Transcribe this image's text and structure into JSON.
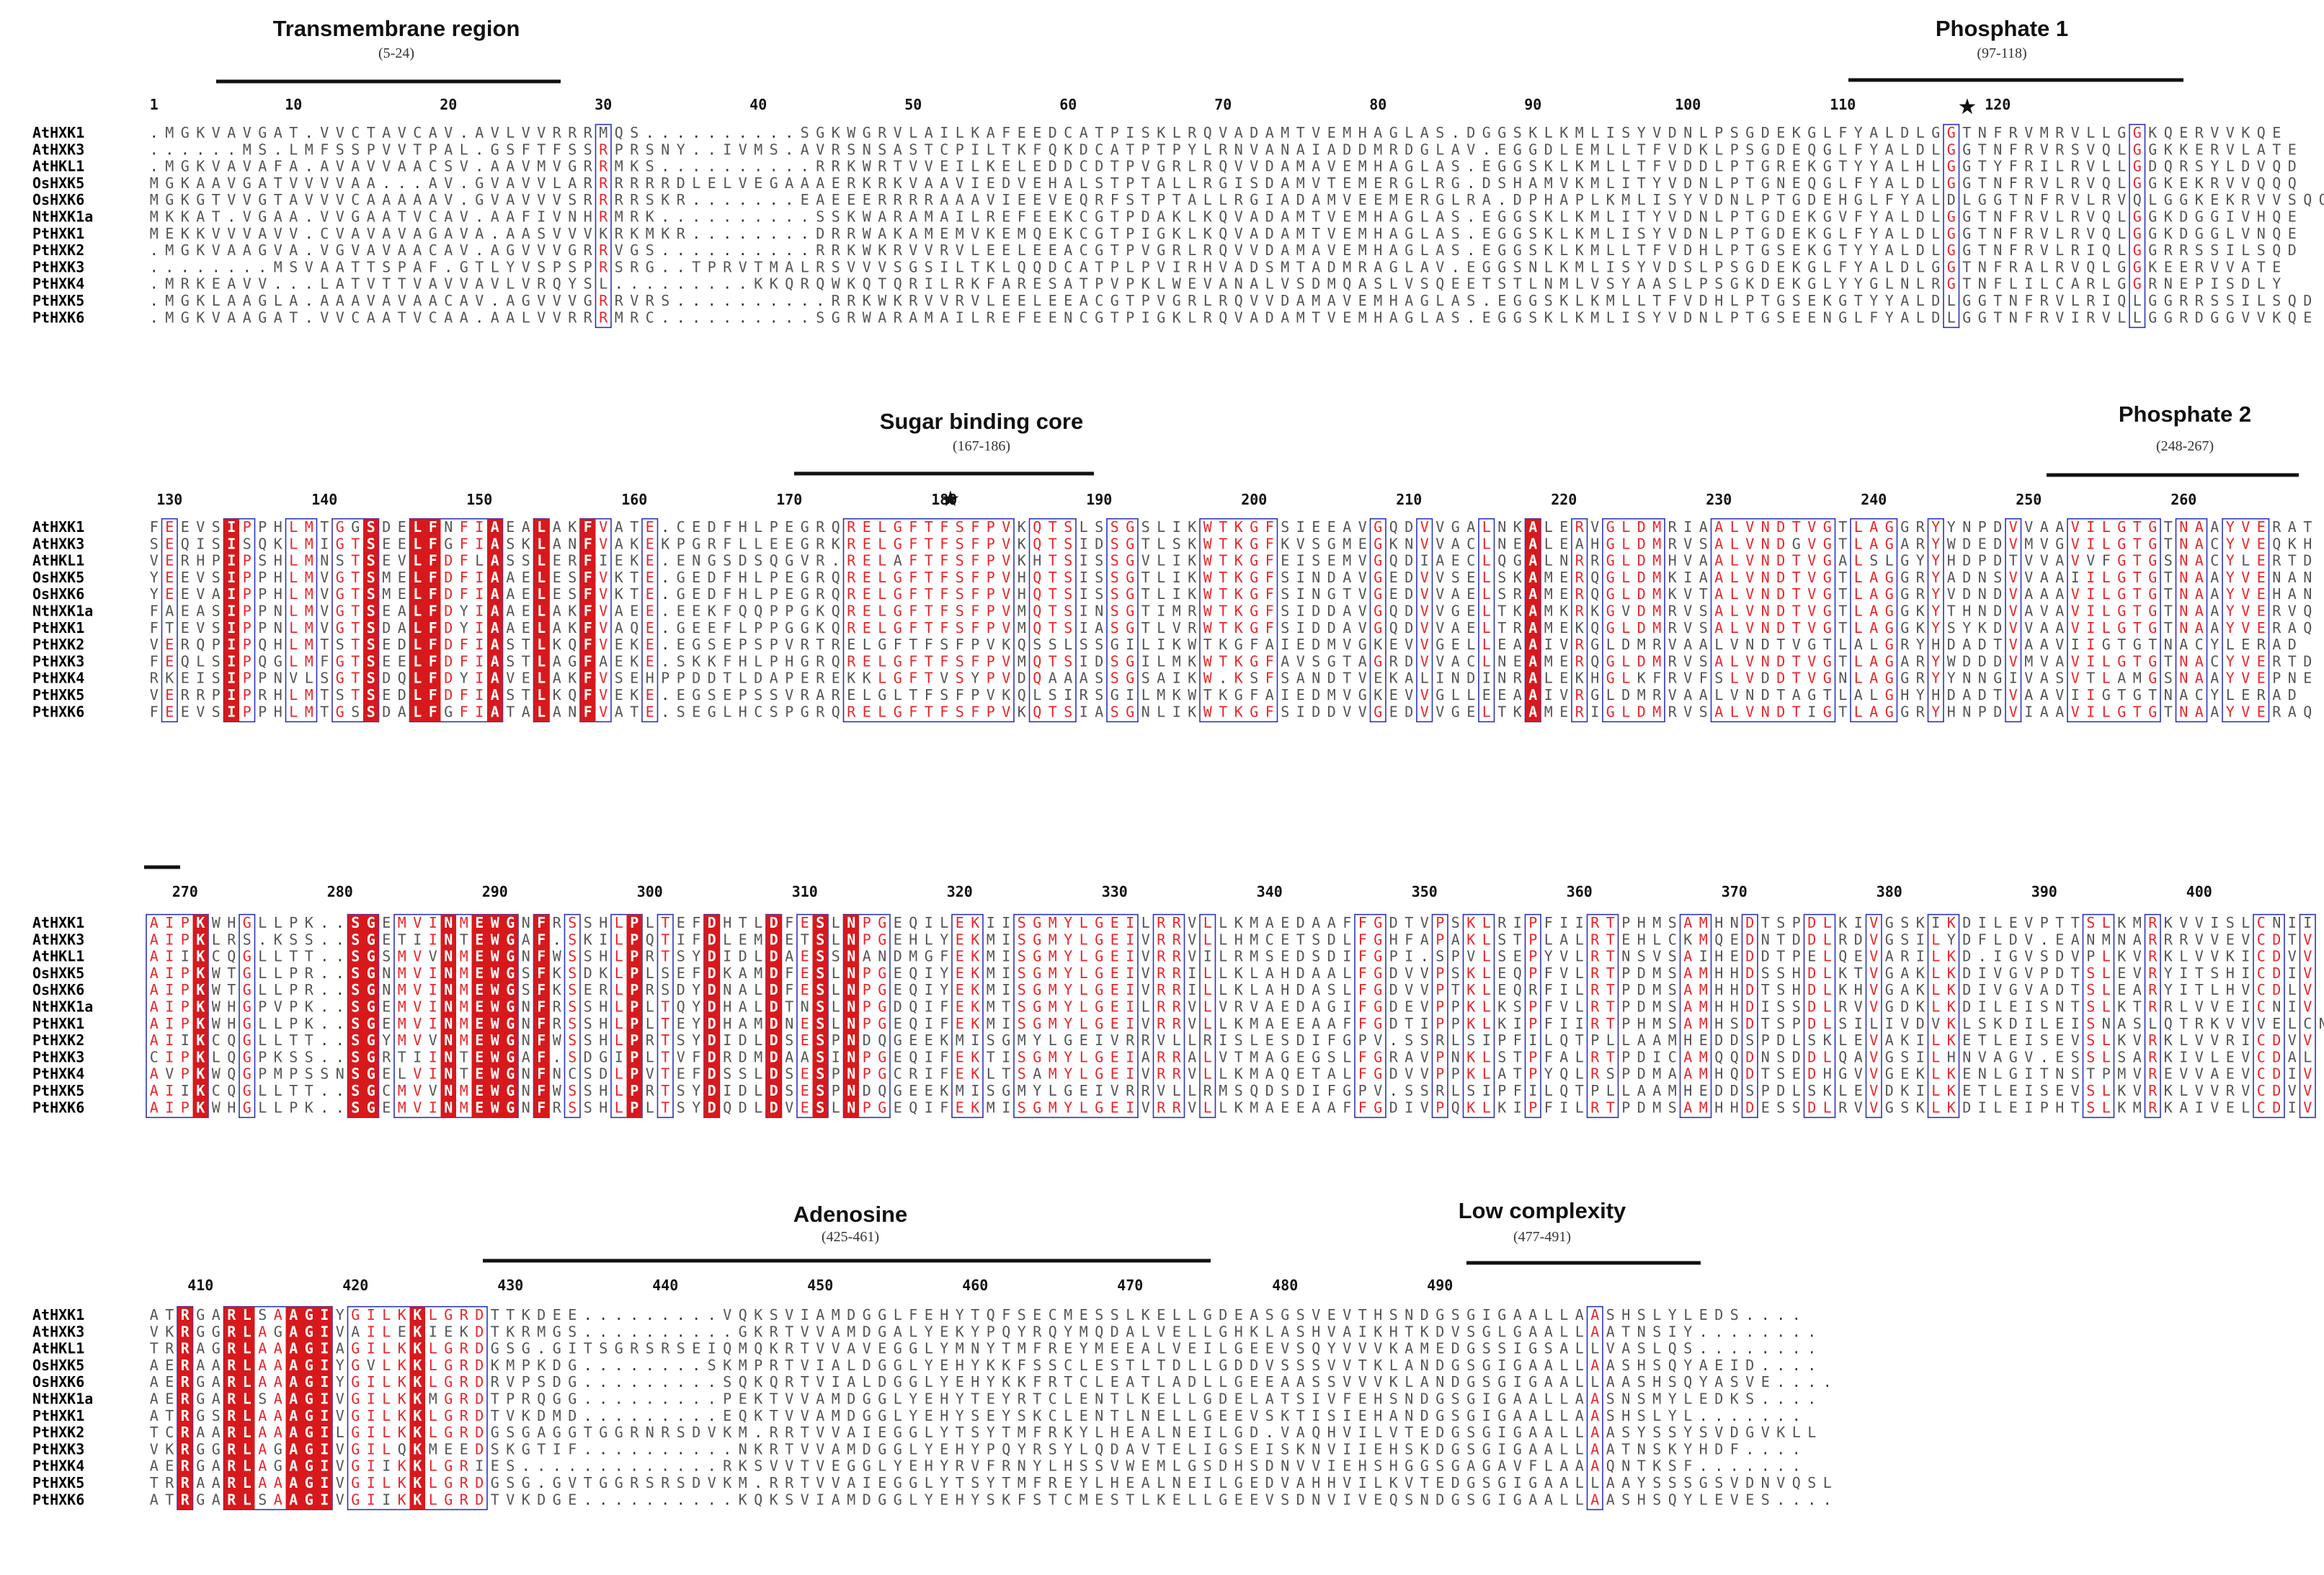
{
  "figure": {
    "block1": {
      "annotations": [
        {
          "label": "Transmembrane region",
          "range": "(5-24)"
        },
        {
          "label": "Phosphate 1",
          "range": "(97-118)"
        }
      ],
      "positions": [
        "1",
        "10",
        "20",
        "30",
        "40",
        "50",
        "60",
        "70",
        "80",
        "90",
        "100",
        "110",
        "120"
      ],
      "star": "★",
      "sequences": [
        {
          "name": "AtHXK1",
          "seq": ".MGKVAVGAT.VVCTAVCAV.AVLVVRRRMQS..........SGKWGRVLAILKAFEEDCATPISKLRQVADAMTVEMHAGLAS.DGGSKLKMLISYVDNLPSGDEKGLFYALDLGGTNFRVMRVLLGGKQERVVKQE"
        },
        {
          "name": "AtHXK3",
          "seq": "......MS.LMFSSPVVTPAL.GSFTFSSRPRSNY..IVMS.AVRSNSASTCPILTKFQKDCATPTPYLRNVANAIADDMRDGLAV.EGGDLEMLLTFVDKLPSGDEQGLFYALDLGGTNFRVRSVQLGGKKERVLATE"
        },
        {
          "name": "AtHKL1",
          "seq": ".MGKVAVAFA.AVAVVAACSV.AAVMVGRRMKS..........RRKWRTVVEILKELEDDCDTPVGRLRQVVDAMAVEMHAGLAS.EGGSKLKMLLTFVDDLPTGREKGTYYALHLGGTYFRILRVLLGDQRSYLDVQD"
        },
        {
          "name": "OsHXK5",
          "seq": "MGKAAVGATVVVVAA...AV.GVAVVLARRRRRRDLELVEGAAAERKRKVAAVIEDVEHALSTPTALLRGISDAMVTEMERGLRG.DSHAMVKMLITYVDNLPTGNEQGLFYALDLGGTNFRVLRVQLGGKEKRVVQQQ"
        },
        {
          "name": "OsHXK6",
          "seq": "MGKGTVVGTAVVVCAAAAAV.GVAVVVSRRRRSKR.......EAEEERRRRAAAVIEEVEQRFSTPTALLRGIADAMVEEMERGLRA.DPHAPLKMLISYVDNLPTGDEHGLFYALDLGGTNFRVLRVQLGGKEKRVVSQQ"
        },
        {
          "name": "NtHXK1a",
          "seq": "MKKAT.VGAA.VVGAATVCAV.AAFIVNHRMRK..........SSKWARAMAILREFEEKCGTPDAKLKQVADAMTVEMHAGLAS.EGGSKLKMLITYVDNLPTGDEKGVFYALDLGGTNFRVLRVQLGGKDGGIVHQE"
        },
        {
          "name": "PtHXK1",
          "seq": "MEKKVVVAVV.CVAVAVAGAVA.AASVVVKRKMKR........DRRWAKAMEMVKEMQEKCGTPIGKLKQVADAMTVEMHAGLAS.EGGSKLKMLISYVDNLPTGDEKGLFYALDLGGTNFRVLRVQLGGKDGGLVNQE"
        },
        {
          "name": "PtHXK2",
          "seq": ".MGKVAAGVA.VGVAVAACAV.AGVVVGRRVGS..........RRKWKRVVRVLEELEEACGTPVGRLRQVVDAMAVEMHAGLAS.EGGSKLKMLLTFVDHLPTGSEKGTYYALDLGGTNFRVLRIQLGGRRSSILSQD"
        },
        {
          "name": "PtHXK3",
          "seq": "........MSVAATTSPAF.GTLYVSPSPRSRG..TPRVTMALRSVVVSGSILTKLQQDCATPLPVIRHVADSMTADMRAGLAV.EGGSNLKMLISYVDSLPSGDEKGLFYALDLGGTNFRALRVQLGGKEERVVATE"
        },
        {
          "name": "PtHXK4",
          "seq": ".MRKEAVV...LATVTTVAVVAVLVRQYSL.........KKQRQWKQTQRILRKFARESATPVPKLWEVANALVSDMQASLVSQEETSTLNMLVSYAASLPSGKDEKGLYYGLNLRGTNFLILCARLGGRNEPISDLY"
        },
        {
          "name": "PtHXK5",
          "seq": ".MGKLAAGLA.AAAVAVAACAV.AGVVVGRRVRS..........RRKWKRVVRVLEELEEACGTPVGRLRQVVDAMAVEMHAGLAS.EGGSKLKMLLTFVDHLPTGSEKGTYYALDLGGTNFRVLRIQLGGRRSSILSQD"
        },
        {
          "name": "PtHXK6",
          "seq": ".MGKVAAGAT.VVCAATVCAA.AALVVRRRMRC..........SGRWARAMAILREFEENCGTPIGKLRQVADAMTVEMHAGLAS.EGGSKLKMLISYVDNLPTGSEENGLFYALDLGGTNFRVIRVLLGGRDGGVVKQE"
        }
      ]
    },
    "block2": {
      "annotations": [
        {
          "label": "Sugar binding core",
          "range": "(167-186)"
        },
        {
          "label": "Phosphate 2",
          "range": "(248-267)"
        }
      ],
      "positions": [
        "130",
        "140",
        "150",
        "160",
        "170",
        "180",
        "190",
        "200",
        "210",
        "220",
        "230",
        "240",
        "250",
        "260"
      ],
      "star": "★",
      "sequences": [
        {
          "name": "AtHXK1",
          "seq": "FEEVSIPPHLMTGGSDELFNFIAEALAKFVATE.CEDFHLPEGRQRELGFTFSFPVKQTSLSSGSLIKWTKGFSIEEAVGQDVVGALNKALERVGLDMRIAALVNDTVGTLAGGRYYNPDVVAAVILGTGTNAAYVERAT"
        },
        {
          "name": "AtHXK3",
          "seq": "SEQISISQKLMIGTSEELFGFIASKLANFVAKEKPGRFLLEEGRKRELGFTFSFPVKQTSIDSGTLSKWTKGFKVSGMEGKNVVACLNEALEAHGLDMRVSALVNDGVGTLAGARYWDEDVMVGVILGTGTNACYVEQKH"
        },
        {
          "name": "AtHKL1",
          "seq": "VERHPIPSHLMNSTSEVLFDFLASSLERFIEKE.ENGSDSQGVR.RELAFTFSFPVKHTSISSGVLIKWTKGFEISEMVGQDIAECLQGALNRRGLDMHVAALVNDTVGALSLGYYHDPDTVVAVVFGTGSNACYLERTD"
        },
        {
          "name": "OsHXK5",
          "seq": "YEEVSIPPHLMVGTSMELFDFIAAELESFVKTE.GEDFHLPEGRQRELGFTFSFPVHQTSISSGTLIKWTKGFSINDAVGEDVVSELSKAMERQGLDMKIAALVNDTVGTLAGGRYADNSVVAAIILGTGTNAAYVENAN"
        },
        {
          "name": "OsHXK6",
          "seq": "YEEVAIPPHLMVGTSMELFDFIAAELESFVKTE.GEDFHLPEGRQRELGFTFSFPVHQTSISSGTLIKWTKGFSINGTVGEDVVAELSRAMERQGLDMKVTALVNDTVGTLAGGRYVDNDVAAAVILGTGTNAAYVEHAN"
        },
        {
          "name": "NtHXK1a",
          "seq": "FAEASIPPNLMVGTSEALFDYIAAELAKFVAEE.EEKFQQPPGKQRELGFTFSFPVMQTSINSGTIMRWTKGFSIDDAVGQDVVGELTKAMKRKGVDMRVSALVNDTVGTLAGGKYTHNDVAVAVILGTGTNAAYVERVQ"
        },
        {
          "name": "PtHXK1",
          "seq": "FTEVSIPPNLMVGTSDALFDYIAAELAKFVAQE.GEEFLPPGGKQRELGFTFSFPVMQTSIASGTLVRWTKGFSIDDAVGQDVVAELTRAMEKQGLDMRVSALVNDTVGTLAGGKYSYKDVVAAVILGTGTNAAYVERAQ"
        },
        {
          "name": "PtHXK2",
          "seq": "VERQPIPQHLMTSTSEDLFDFIASTLKQFVEKE.EGSEPSPVRTRELGFTFSFPVKQSSLSSGILIKWTKGFAIEDMVGKEVVGELLEAAIVRGLDMRVAALVNDTVGTLALGRYHDADTVAAVIIGTGTNACYLERAD"
        },
        {
          "name": "PtHXK3",
          "seq": "FEQLSIPQGLMFGTSEELFDFIASTLAGFAEKE.SKKFHLPHGRQRELGFTFSFPVMQTSIDSGILMKWTKGFAVSGTAGRDVVACLNEAMERQGLDMRVSALVNDTVGTLAGARYWDDDVMVAVILGTGTNACYVERTD"
        },
        {
          "name": "PtHXK4",
          "seq": "RKEISIPPNVLSGTSDQLFDYIAVELAKFVSEHPPDDTLDAPEREKKLGFTVSYPVDQAAASSGSAIKW.KSFSANDTVEKALINDINRALEKHGLKFRVFSLVDDTVGNLAGGRYYNNGIVASVTLAMGSNAAYVEPNE"
        },
        {
          "name": "PtHXK5",
          "seq": "VERRPIPRHLMTSTSEDLFDFIASTLKQFVEKE.EGSEPSSVRARELGLTFSFPVKQLSIRSGILMKWTKGFAIEDMVGKEVVGLLEEAAIVRGLDMRVAALVNDTAGTLALGHYHDADTVAAVIIGTGTNACYLERAD"
        },
        {
          "name": "PtHXK6",
          "seq": "FEEVSIPPHLMTGSSDALFGFIATALANFVATE.SEGLHCSPGRQRELGFTFSFPVKQTSIASGNLIKWTKGFSIDDVVGEDVVGELTKAMERIGLDMRVSALVNDTIGTLAGGRYHNPDVIAAVILGTGTNAAYVERAQ"
        }
      ]
    },
    "block3": {
      "positions": [
        "270",
        "280",
        "290",
        "300",
        "310",
        "320",
        "330",
        "340",
        "350",
        "360",
        "370",
        "380",
        "390",
        "400"
      ],
      "sequences": [
        {
          "name": "AtHXK1",
          "seq": "AIPKWHGLLPK..SGEMVINMEWGNFRSSHLPLTEFDHTLDFESLNPGEQILEKIISGMYLGEILRRVLLKMAEDAAFFGDTVPSKLRIPFIIRTPHMSAMHNDTSPDLKIVGSKIKDILEVPTTSLKMRKVVISLCNII"
        },
        {
          "name": "AtHXK3",
          "seq": "AIPKLRS.KSS..SGETIINTEWGAF.SKILPQTIFDLEMDETSLNPGEHLYEKMISGMYLGEIVRRVLLHMCETSDLFGHFAPAKLSTPLALRTEHLCKMQEDNTDDLRDVGSILYDFLDV.EANMNARRRVVEVCDTV"
        },
        {
          "name": "AtHKL1",
          "seq": "AIIKCQGLLTT..SGSMVVNMEWGNFWSSHLPRTSYDIDLDAESSNANDMGFEKMISGMYLGEIVRRVILRMSEDSDIFGPI.SPVLSEPYVLRTNSVSAIHEDDTPELQEVARILKD.IGVSDVPLKVRKLVVKICDVV"
        },
        {
          "name": "OsHXK5",
          "seq": "AIPKWTGLLPR..SGNMVINMEWGSFKSDKLPLSEFDKAMDFESLNPGEQIYEKMISGMYLGEIVRRILLKLAHDAALFGDVVPSKLEQPFVLRTPDMSAMHHDSSHDLKTVGAKLKDIVGVPDTSLEVRYITSHICDIV"
        },
        {
          "name": "OsHXK6",
          "seq": "AIPKWTGLLPR..SGNMVINMEWGSFKSERLPRSDYDNALDFESLNPGEQIYEKMISGMYLGEIVRRILLKLAHDASLFGDVVPTKLEQRFILRTPDMSAMHHDTSHDLKHVGAKLKDIVGVADTSLEARYITLHVCDLV"
        },
        {
          "name": "NtHXK1a",
          "seq": "AIPKWHGPVPK..SGEMVINMEWGNFRSSHLPLTQYDHALDTNSLNPGDQIFEKMTSGMYLGEILRRVLVRVAEDAGIFGDEVPPKLKSPFVLRTPDMSAMHHDISSDLRVVGDKLKDILEISNTSLKTRRLVVEICNIV"
        },
        {
          "name": "PtHXK1",
          "seq": "AIPKWHGLLPK..SGEMVINMEWGNFRSSHLPLTEYDHAMDNESLNPGEQIFEKMISGMYLGEIVRRVLLKMAEEAAFFGDTIPPKLKIPFIIRTPHMSAMHSDTSPDLSILIVDVKLSKDILEISNASLQTRKVVVELCNIV"
        },
        {
          "name": "PtHXK2",
          "seq": "AIIKCQGLLTT..SGYMVVNMEWGNFWSSHLPRTSYDIDLDSESPNDQGEEKMISGMYLGEIVRRVLLRISLESDIFGPV.SSRLSIPFILQTPLLAAMHEDDSPDLSKLEVAKILKETLEISEVSLKVRKLVVRICDVV"
        },
        {
          "name": "PtHXK3",
          "seq": "CIPKLQGPKSS..SGRTIINTEWGAF.SDGIPLTVFDRDMDAASINPGEQIFEKTISGMYLGEIARRALVTMAGEGSLFGRAVPNKLSTPFALRTPDICAMQQDNSDDLQAVGSILHNVAGV.ESSLSARKIVLEVCDAL"
        },
        {
          "name": "PtHXK4",
          "seq": "AVPKWQGPMPSSNSGELVINTEWGNFNCSDLPVTEFDSSLDSESPNPGCRIFEKLTSAMYLGEIVRRVLLKMAQETALFGDVVPPKLATPYQLRSPDMAAMHQDTSEDHGVVGEKLKENLGITNSTPMVREVVAEVCDIV"
        },
        {
          "name": "PtHXK5",
          "seq": "AIIKCQGLLTT..SGCMVVNMEWGNFWSSHLPRTSYDIDLDSESPNDQGEEKMISGMYLGEIVRRVLLRMSQDSDIFGPV.SSRLSIPFILQTPLLAAMHEDDSPDLSKLEVDKILKETLEISEVSLKVRKLVVRVCDVV"
        },
        {
          "name": "PtHXK6",
          "seq": "AIPKWHGLLPK..SGEMVINMEWGNFRSSHLPLTSYDQDLDVESLNPGEQIFEKMISGMYLGEIVRRVLLKMAEEAAFFGDIVPQKLKIPFILRTPDMSAMHHDESSDLRVVGSKLKDILEIPHTSLKMRKAIVELCDIV"
        }
      ]
    },
    "block4": {
      "annotations": [
        {
          "label": "Adenosine",
          "range": "(425-461)"
        },
        {
          "label": "Low complexity",
          "range": "(477-491)"
        }
      ],
      "positions": [
        "410",
        "420",
        "430",
        "440",
        "450",
        "460",
        "470",
        "480",
        "490"
      ],
      "sequences": [
        {
          "name": "AtHXK1",
          "seq": "ATRGARLSAAGIYGILKKLGRDTTKDEE.........VQKSVIAMDGGLFEHYTQFSECMESSLKELLGDEASGSVEVTHSNDGSGIGAALLAASHSLYLEDS...."
        },
        {
          "name": "AtHXK3",
          "seq": "VKRGGRLAGAGIVAILEKIEKDTKRMGS..........GKRTVVAMDGALYEKYPQYRQYMQDALVELLGHKLASHVAIKHTKDVSGLGAALLAATNSIY........"
        },
        {
          "name": "AtHKL1",
          "seq": "TRRAGRLAAAGIAGILKKLGRDGSG.GITSGRSRSEIQMQKRTVVAVEGGLYMNYTMFREYMEEALVEILGEEVSQYVVVKAMEDGSSIGSALLVASLQS........"
        },
        {
          "name": "OsHXK5",
          "seq": "AERAARLAAAGIYGVLKKLGRDKMPKDG........SKMPRTVIALDGGLYEHYKKFSSCLESTLTDLLGDDVSSSVVTKLANDGSGIGAALLAASHSQYAEID...."
        },
        {
          "name": "OsHXK6",
          "seq": "AERGARLAAAGIYGILKKLGRDRVPSDG.........SQKQRTVIALDGGLYEHYKKFRTCLEATLADLLGEEAASSVVVKLANDGSGIGAALLAASHSQYASVE...."
        },
        {
          "name": "NtHXK1a",
          "seq": "AERGARLSAAGIVGILKKMGRDTPRQGG.........PEKTVVAMDGGLYEHYTEYRTCLENTLKELLGDELATSIVFEHSNDGSGIGAALLAASNSMYLEDKS...."
        },
        {
          "name": "PtHXK1",
          "seq": "ATRGSRLAAAGIVGILKKLGRDTVKDMD.........EQKTVVAMDGGLYEHYSEYSKCLENTLNELLGEEVSKTISIEHANDGSGIGAALLAASHSLYL......."
        },
        {
          "name": "PtHXK2",
          "seq": "TCRAARLAAAGILGILKKLGRDGSGAGGTGGRNRSDVKM.RRTVVAIEGGLYTSYTMFRKYLHEALNEILGD.VAQHVILVTEDGSGIGAALLAASYSSYSVDGVKLL"
        },
        {
          "name": "PtHXK3",
          "seq": "VKRGGRLAGAGIVGILQKMEEDSKGTIF..........NKRTVVAMDGGLYEHYPQYRSYLQDAVTELIGSEISKNVIIEHSKDGSGIGAALLAATNSKYHDF...."
        },
        {
          "name": "PtHXK4",
          "seq": "AERGARLAGAGIVGIIKKLGRIES.............RKSVVTVEGGLYEHYRVFRNYLHSSVWEMLGSDHSDNVVIEHSHGGSGAGAVFLAAAQNTKSF......."
        },
        {
          "name": "PtHXK5",
          "seq": "TRRAARLAAAGIVGILKKLGRDGSG.GVTGGRSRSDVKM.RRTVVAIEGGLYTSYTMFREYLHEALNEILGEDVAHHVILKVTEDGSGIGAALLAAYSSSGSVDNVQSL"
        },
        {
          "name": "PtHXK6",
          "seq": "ATRGARLSAAGIVGIIKKLGRDTVKDGE..........KQKSVIAMDGGLYEHYSKFSTCMESTLKELLGEEVSDNVIVEQSNDGSGIGAALLAASHSQYLEVES...."
        }
      ]
    }
  }
}
